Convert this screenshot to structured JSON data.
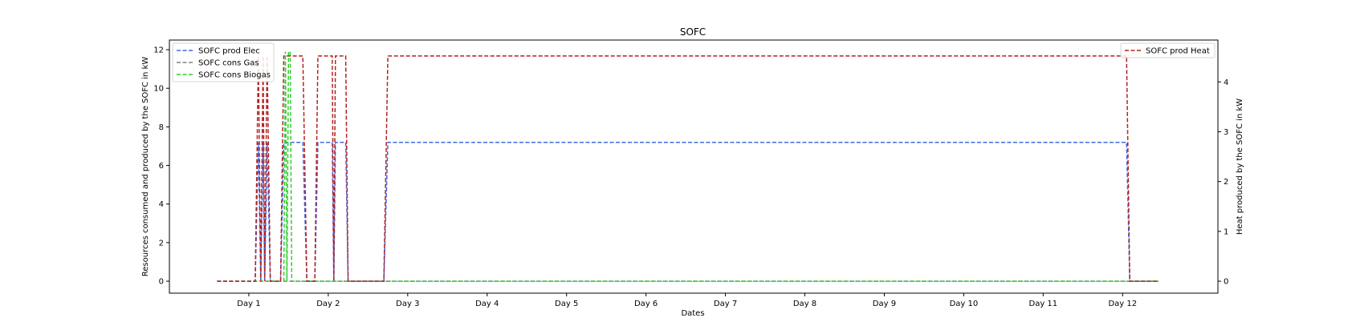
{
  "chart_data": {
    "type": "line",
    "title": "SOFC",
    "xlabel": "Dates",
    "ylabel": "Resources consumed and produced by the SOFC in kW",
    "ylabel_right": "Heat produced by the SOFC in kW",
    "x_unit": "day",
    "x_ticks": [
      1,
      2,
      3,
      4,
      5,
      6,
      7,
      8,
      9,
      10,
      11,
      12
    ],
    "x_tick_labels": [
      "Day 1",
      "Day 2",
      "Day 3",
      "Day 4",
      "Day 5",
      "Day 6",
      "Day 7",
      "Day 8",
      "Day 9",
      "Day 10",
      "Day 11",
      "Day 12"
    ],
    "xlim": [
      0.0,
      13.2
    ],
    "ylim": [
      -0.62,
      12.5
    ],
    "y_ticks": [
      0,
      2,
      4,
      6,
      8,
      10,
      12
    ],
    "ylim_right": [
      -0.24,
      4.84
    ],
    "y_ticks_right": [
      0,
      1,
      2,
      3,
      4
    ],
    "grid": false,
    "legend_left": "top-left",
    "legend_right": "top-right",
    "series": [
      {
        "name": "SOFC prod Elec",
        "axis": "left",
        "color": "#4169e1",
        "style": "dashed",
        "x": [
          0.6,
          1.08,
          1.12,
          1.15,
          1.18,
          1.2,
          1.23,
          1.27,
          1.4,
          1.44,
          1.68,
          1.73,
          1.83,
          1.87,
          2.05,
          2.07,
          2.09,
          2.11,
          2.22,
          2.25,
          2.7,
          2.75,
          12.05,
          12.09,
          12.45
        ],
        "y": [
          0,
          0,
          7.2,
          0,
          7.2,
          0,
          7.2,
          0,
          0,
          7.2,
          7.2,
          0,
          0,
          7.2,
          7.2,
          0,
          7.2,
          7.2,
          7.2,
          0,
          0,
          7.2,
          7.2,
          0,
          0
        ]
      },
      {
        "name": "SOFC cons Gas",
        "axis": "left",
        "color": "#808080",
        "style": "dashed",
        "x": [
          0.6,
          12.45
        ],
        "y": [
          0,
          0
        ]
      },
      {
        "name": "SOFC cons Biogas",
        "axis": "left",
        "color": "#32cd32",
        "style": "dashed",
        "x": [
          0.6,
          1.44,
          1.46,
          1.48,
          1.5,
          1.52,
          1.54,
          12.45
        ],
        "y": [
          0,
          0,
          11.9,
          0,
          11.9,
          11.9,
          0,
          0
        ]
      },
      {
        "name": "SOFC prod Heat",
        "axis": "right",
        "color": "#b22222",
        "style": "dashed",
        "x": [
          0.6,
          1.08,
          1.12,
          1.15,
          1.18,
          1.2,
          1.23,
          1.27,
          1.4,
          1.44,
          1.68,
          1.73,
          1.83,
          1.87,
          2.05,
          2.07,
          2.09,
          2.11,
          2.22,
          2.25,
          2.7,
          2.75,
          12.05,
          12.09,
          12.45
        ],
        "y": [
          0,
          0,
          4.52,
          0,
          4.52,
          0,
          4.52,
          0,
          0,
          4.52,
          4.52,
          0,
          0,
          4.52,
          4.52,
          0,
          4.52,
          4.52,
          4.52,
          0,
          0,
          4.52,
          4.52,
          0,
          0
        ]
      }
    ]
  }
}
